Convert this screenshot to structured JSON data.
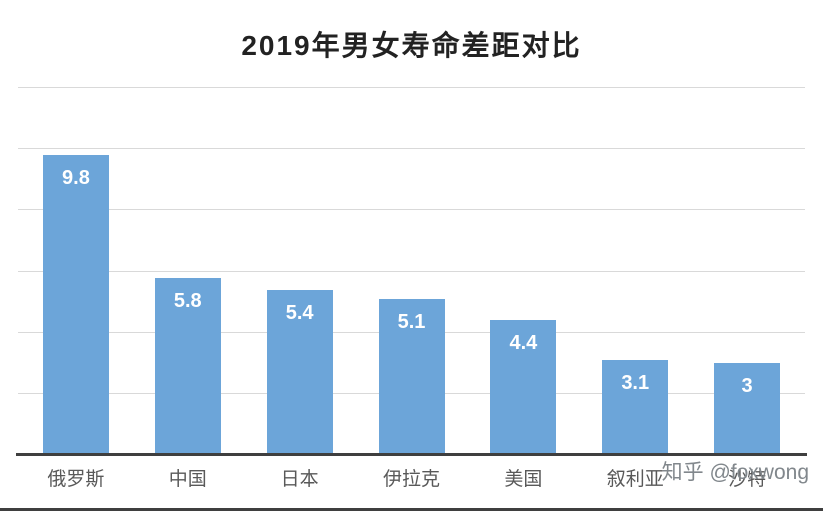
{
  "title": "2019年男女寿命差距对比",
  "watermark": {
    "text": "知乎 @foxwong"
  },
  "colors": {
    "background": "#ffffff",
    "bar": "#6ca5d9",
    "title": "#222222",
    "grid": "#d9d9d9",
    "axis": "#3f3f3f",
    "value": "#ffffff",
    "category": "#595959",
    "watermark": "#81878c"
  },
  "chart_data": {
    "type": "bar",
    "title": "2019年男女寿命差距对比",
    "categories": [
      "俄罗斯",
      "中国",
      "日本",
      "伊拉克",
      "美国",
      "叙利亚",
      "沙特"
    ],
    "values": [
      9.8,
      5.8,
      5.4,
      5.1,
      4.4,
      3.1,
      3
    ],
    "xlabel": "",
    "ylabel": "",
    "ylim": [
      0,
      12
    ],
    "grid_step": 2,
    "grid": "horizontal",
    "legend": "none",
    "value_label_position": "inside-top"
  }
}
